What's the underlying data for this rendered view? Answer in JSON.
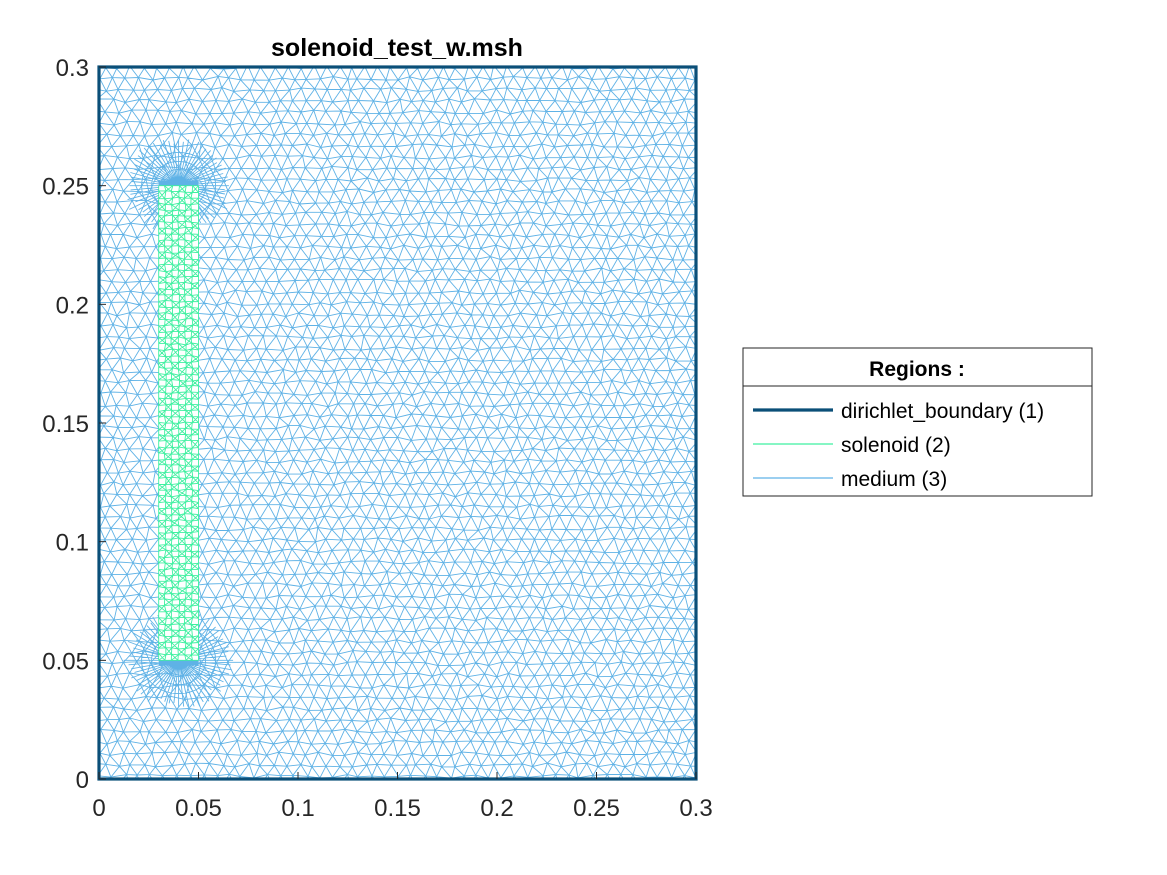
{
  "chart_data": {
    "type": "mesh",
    "title": "solenoid_test_w.msh",
    "xlim": [
      0,
      0.3
    ],
    "ylim": [
      0,
      0.3
    ],
    "x_ticks": [
      0,
      0.05,
      0.1,
      0.15,
      0.2,
      0.25,
      0.3
    ],
    "x_tick_labels": [
      "0",
      "0.05",
      "0.1",
      "0.15",
      "0.2",
      "0.25",
      "0.3"
    ],
    "y_ticks": [
      0,
      0.05,
      0.1,
      0.15,
      0.2,
      0.25,
      0.3
    ],
    "y_tick_labels": [
      "0",
      "0.05",
      "0.1",
      "0.15",
      "0.2",
      "0.25",
      "0.3"
    ],
    "grid": false,
    "legend": {
      "title": "Regions :",
      "placement": "right-outside",
      "entries": [
        {
          "label": "dirichlet_boundary (1)",
          "color": "#0b4f78",
          "style": "thick-line"
        },
        {
          "label": "solenoid (2)",
          "color": "#3ef0a0",
          "style": "thin-line"
        },
        {
          "label": "medium (3)",
          "color": "#5fb2e6",
          "style": "thin-line"
        }
      ]
    },
    "regions": [
      {
        "name": "dirichlet_boundary",
        "id": 1,
        "shape": "boundary",
        "x": [
          0,
          0.3
        ],
        "y": [
          0,
          0.3
        ],
        "color": "#0b4f78"
      },
      {
        "name": "solenoid",
        "id": 2,
        "shape": "rectangle",
        "x": [
          0.03,
          0.05
        ],
        "y": [
          0.05,
          0.25
        ],
        "color": "#3ef0a0"
      },
      {
        "name": "medium",
        "id": 3,
        "shape": "domain",
        "x": [
          0,
          0.3
        ],
        "y": [
          0,
          0.3
        ],
        "color": "#5fb2e6"
      }
    ]
  }
}
